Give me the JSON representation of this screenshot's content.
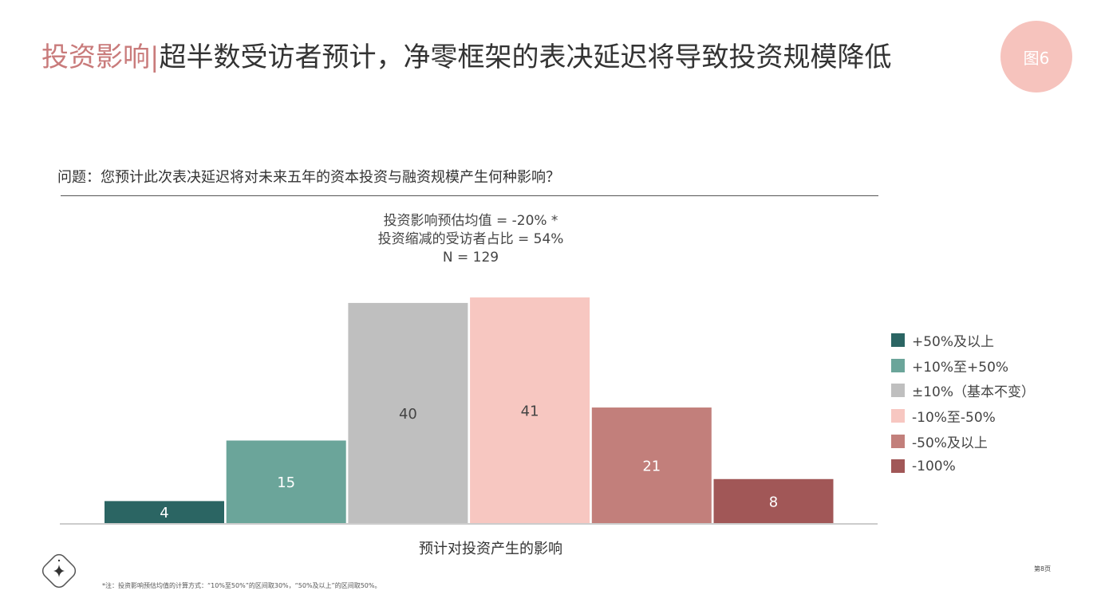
{
  "header": {
    "title_accent": "投资影响",
    "title_sep": "|",
    "title_main": "超半数受访者预计，净零框架的表决延迟将导致投资规模降低",
    "badge": "图6"
  },
  "question": "问题：您预计此次表决延迟将对未来五年的资本投资与融资规模产生何种影响？",
  "stats": [
    "投资影响预估均值 = -20% *",
    "投资缩减的受访者占比 = 54%",
    "N = 129"
  ],
  "chart_data": {
    "type": "bar",
    "categories": [
      "+50%及以上",
      "+10%至+50%",
      "±10%（基本不变）",
      "-10%至-50%",
      "-50%及以上",
      "-100%"
    ],
    "values": [
      4,
      15,
      40,
      41,
      21,
      8
    ],
    "colors": [
      "#2b6563",
      "#6ba59a",
      "#bfbfbf",
      "#f7c7c1",
      "#c27f7b",
      "#a15757"
    ],
    "xlabel": "预计对投资产生的影响",
    "ylabel": "",
    "ylim": [
      0,
      41
    ],
    "legend_position": "right",
    "grid": false
  },
  "footnote": "*注：投资影响预估均值的计算方式：“10%至50%”的区间取30%，“50%及以上”的区间取50%。",
  "page_number": "第8页"
}
